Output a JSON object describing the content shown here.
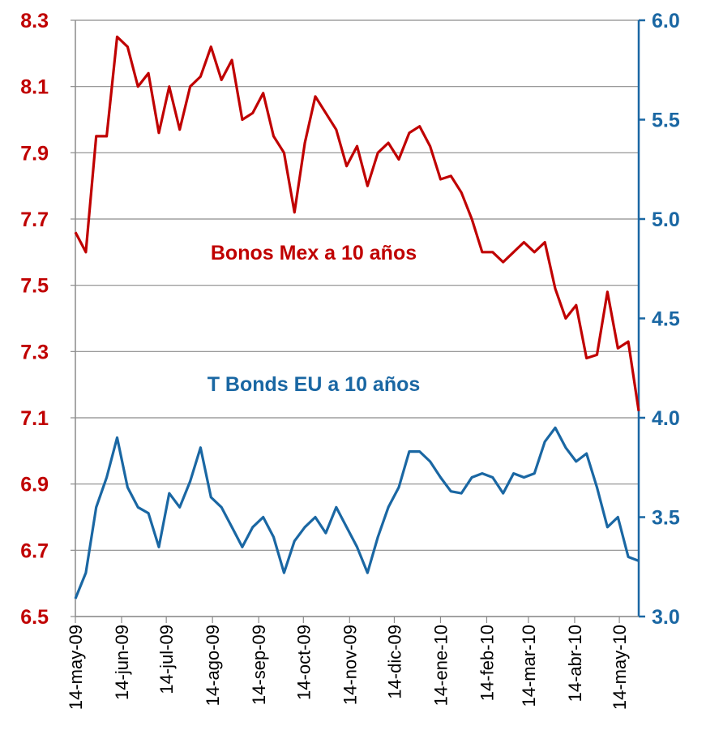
{
  "chart_data": {
    "type": "line",
    "annotations": [
      "Bonos Mex a 10 años",
      "T Bonds EU a 10 años"
    ],
    "x": [
      "2009-05-14",
      "2009-05-21",
      "2009-05-28",
      "2009-06-04",
      "2009-06-11",
      "2009-06-18",
      "2009-06-25",
      "2009-07-02",
      "2009-07-09",
      "2009-07-16",
      "2009-07-23",
      "2009-07-30",
      "2009-08-06",
      "2009-08-13",
      "2009-08-20",
      "2009-08-27",
      "2009-09-03",
      "2009-09-10",
      "2009-09-17",
      "2009-09-24",
      "2009-10-01",
      "2009-10-08",
      "2009-10-15",
      "2009-10-22",
      "2009-10-29",
      "2009-11-05",
      "2009-11-12",
      "2009-11-19",
      "2009-11-26",
      "2009-12-03",
      "2009-12-10",
      "2009-12-17",
      "2009-12-24",
      "2009-12-31",
      "2010-01-07",
      "2010-01-14",
      "2010-01-21",
      "2010-01-28",
      "2010-02-04",
      "2010-02-11",
      "2010-02-18",
      "2010-02-25",
      "2010-03-04",
      "2010-03-11",
      "2010-03-18",
      "2010-03-25",
      "2010-04-01",
      "2010-04-08",
      "2010-04-15",
      "2010-04-22",
      "2010-04-29",
      "2010-05-06",
      "2010-05-13",
      "2010-05-20",
      "2010-05-27"
    ],
    "series": [
      {
        "name": "Bonos Mex a 10 años",
        "color": "#c00000",
        "axis": "y",
        "values": [
          7.66,
          7.6,
          7.95,
          7.95,
          8.25,
          8.22,
          8.1,
          8.14,
          7.96,
          8.1,
          7.97,
          8.1,
          8.13,
          8.22,
          8.12,
          8.18,
          8.0,
          8.02,
          8.08,
          7.95,
          7.9,
          7.72,
          7.93,
          8.07,
          8.02,
          7.97,
          7.86,
          7.92,
          7.8,
          7.9,
          7.93,
          7.88,
          7.96,
          7.98,
          7.92,
          7.82,
          7.83,
          7.78,
          7.7,
          7.6,
          7.6,
          7.57,
          7.6,
          7.63,
          7.6,
          7.63,
          7.49,
          7.4,
          7.44,
          7.28,
          7.29,
          7.48,
          7.31,
          7.33,
          7.12
        ]
      },
      {
        "name": "T Bonds EU a 10 años",
        "color": "#1a67a3",
        "axis": "y2",
        "values": [
          3.09,
          3.22,
          3.55,
          3.7,
          3.9,
          3.65,
          3.55,
          3.52,
          3.35,
          3.62,
          3.55,
          3.68,
          3.85,
          3.6,
          3.55,
          3.45,
          3.35,
          3.45,
          3.5,
          3.4,
          3.22,
          3.38,
          3.45,
          3.5,
          3.42,
          3.55,
          3.45,
          3.35,
          3.22,
          3.4,
          3.55,
          3.65,
          3.83,
          3.83,
          3.78,
          3.7,
          3.63,
          3.62,
          3.7,
          3.72,
          3.7,
          3.62,
          3.72,
          3.7,
          3.72,
          3.88,
          3.95,
          3.85,
          3.78,
          3.82,
          3.65,
          3.45,
          3.5,
          3.3,
          3.28
        ]
      }
    ],
    "xlim": [
      "2009-05-14",
      "2010-05-27"
    ],
    "xticks": [
      {
        "value": "2009-05-14",
        "label": "14-may-09"
      },
      {
        "value": "2009-06-14",
        "label": "14-jun-09"
      },
      {
        "value": "2009-07-14",
        "label": "14-jul-09"
      },
      {
        "value": "2009-08-14",
        "label": "14-ago-09"
      },
      {
        "value": "2009-09-14",
        "label": "14-sep-09"
      },
      {
        "value": "2009-10-14",
        "label": "14-oct-09"
      },
      {
        "value": "2009-11-14",
        "label": "14-nov-09"
      },
      {
        "value": "2009-12-14",
        "label": "14-dic-09"
      },
      {
        "value": "2010-01-14",
        "label": "14-ene-10"
      },
      {
        "value": "2010-02-14",
        "label": "14-feb-10"
      },
      {
        "value": "2010-03-14",
        "label": "14-mar-10"
      },
      {
        "value": "2010-04-14",
        "label": "14-abr-10"
      },
      {
        "value": "2010-05-14",
        "label": "14-may-10"
      }
    ],
    "ylim": [
      6.5,
      8.3
    ],
    "yticks": [
      6.5,
      6.7,
      6.9,
      7.1,
      7.3,
      7.5,
      7.7,
      7.9,
      8.1,
      8.3
    ],
    "y2lim": [
      3.0,
      6.0
    ],
    "y2ticks": [
      {
        "value": 3.0,
        "label": "3.0"
      },
      3.5,
      {
        "value": 4.0,
        "label": "4.0"
      },
      4.5,
      {
        "value": 5.0,
        "label": "5.0"
      },
      5.5,
      {
        "value": 6.0,
        "label": "6.0"
      }
    ],
    "grid": true
  }
}
